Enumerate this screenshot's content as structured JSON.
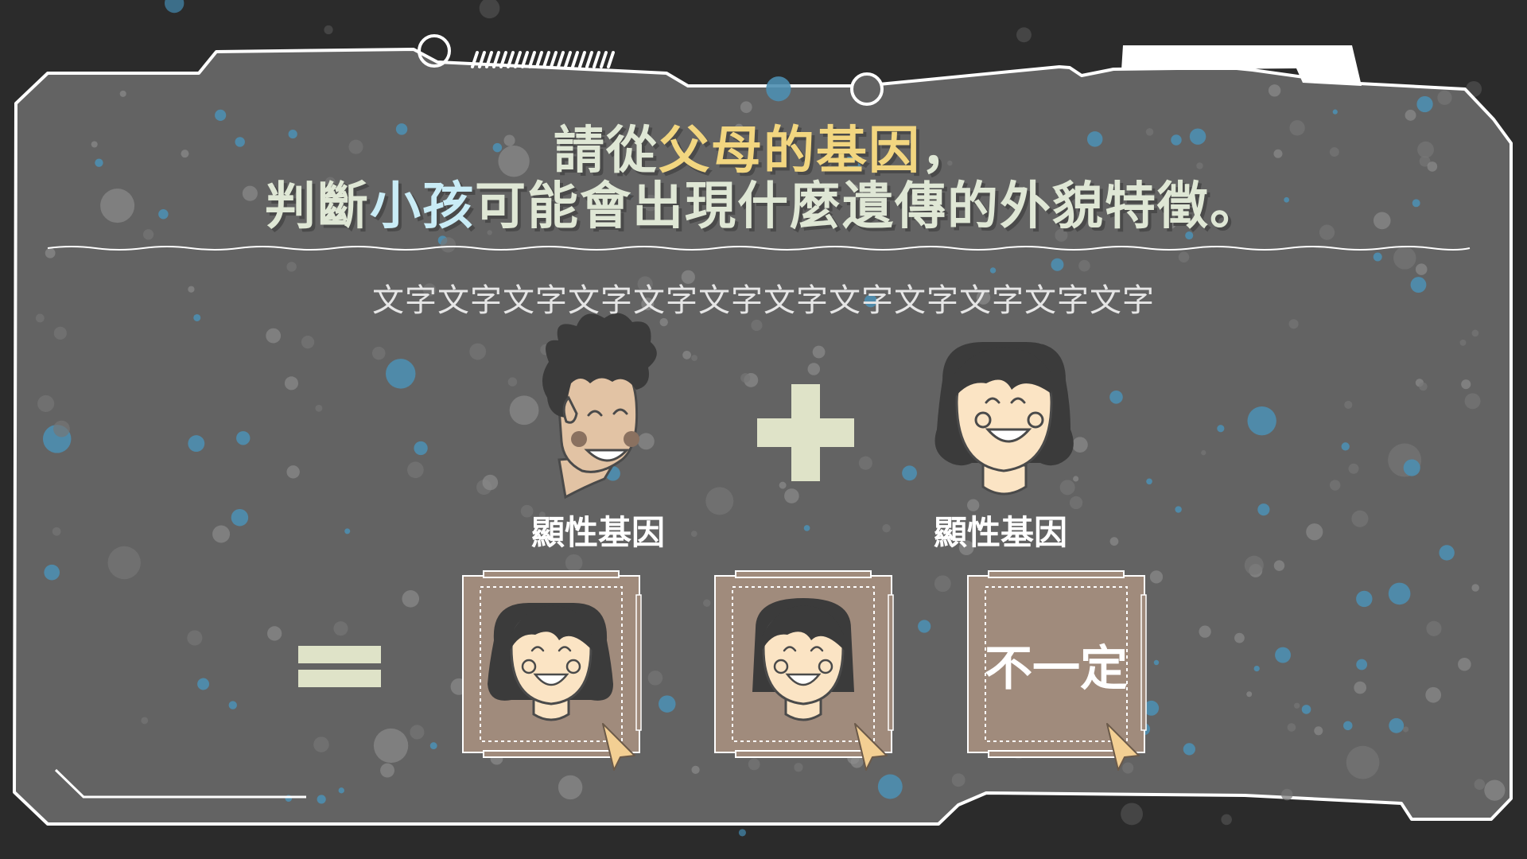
{
  "colors": {
    "background": "#2b2b2b",
    "panel": "#636363",
    "panel_border": "#ffffff",
    "title_main": "#dfe7d5",
    "title_highlight_yellow": "#f2d680",
    "title_highlight_blue": "#c9ecf6",
    "plus_equals": "#dfe3c8",
    "card": "#a08b7c",
    "cursor": "#f3cf93",
    "dot_blue": "#4d8eb0",
    "dot_gray": "#8c8c8c"
  },
  "title": {
    "line1": {
      "part1": "請從",
      "highlight": "父母的基因",
      "part2": "，"
    },
    "line2": {
      "part1": "判斷",
      "highlight": "小孩",
      "part2": "可能會出現什麼遺傳的外貌特徵。"
    }
  },
  "subtitle": "文字文字文字文字文字文字文字文字文字文字文字文字",
  "parents": [
    {
      "gene_label": "顯性基因",
      "icon": "father-curly-hair-icon"
    },
    {
      "gene_label": "顯性基因",
      "icon": "mother-wavy-hair-icon"
    }
  ],
  "operators": {
    "plus": "plus-icon",
    "equals": "equals-icon"
  },
  "options": [
    {
      "icon": "child-wavy-hair-icon",
      "cursor_icon": "cursor-icon"
    },
    {
      "icon": "child-straight-hair-icon",
      "cursor_icon": "cursor-icon"
    },
    {
      "label": "不一定",
      "cursor_icon": "cursor-icon"
    }
  ]
}
